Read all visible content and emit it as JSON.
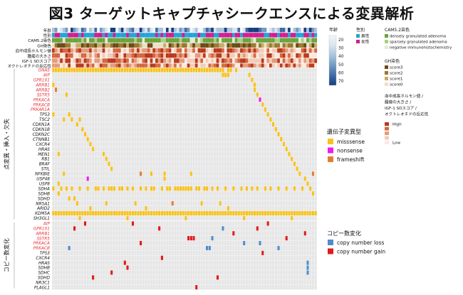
{
  "title": "図3 ターゲットキャプチャシークエンスによる変異解析",
  "chart_data": {
    "type": "heatmap",
    "n_samples": 100,
    "clinical": {
      "tracks": [
        {
          "label": "年齢",
          "kind": "age"
        },
        {
          "label": "性別",
          "kind": "sex"
        },
        {
          "label": "CAM5.2染色",
          "kind": "cam"
        },
        {
          "label": "GH染色",
          "kind": "gh"
        },
        {
          "label": "血中成長ホルモン値",
          "kind": "level"
        },
        {
          "label": "腫瘍の大きさ",
          "kind": "level"
        },
        {
          "label": "IGF-1 SDスコア",
          "kind": "level"
        },
        {
          "label": "オクトレオチドの反応性",
          "kind": "level"
        }
      ]
    },
    "mutations": {
      "section_label": "点変異・挿入・欠失",
      "genes": [
        {
          "name": "GNAS",
          "red": true,
          "samples": {
            "0-64": "m",
            "66-67": "m",
            "69": "m"
          }
        },
        {
          "name": "AIP",
          "red": true,
          "samples": {
            "64-66": "m",
            "74": "m"
          }
        },
        {
          "name": "GPR101",
          "red": true,
          "samples": {
            "75": "m"
          }
        },
        {
          "name": "ARRB1",
          "red": true,
          "samples": {
            "0": "m",
            "76": "m"
          }
        },
        {
          "name": "ARRB2",
          "red": true,
          "samples": {
            "1": "f",
            "76": "m"
          }
        },
        {
          "name": "SSTR5",
          "red": true,
          "samples": {
            "5": "m",
            "77": "m"
          }
        },
        {
          "name": "PRKACA",
          "red": true,
          "samples": {
            "78": "n"
          }
        },
        {
          "name": "PRKACB",
          "red": true,
          "samples": {
            "79": "m"
          }
        },
        {
          "name": "PRKAR1A",
          "red": true,
          "samples": {
            "80": "m"
          }
        },
        {
          "name": "TP53",
          "red": false,
          "samples": {
            "0": "m",
            "6": "m",
            "81": "m"
          }
        },
        {
          "name": "TSC2",
          "red": false,
          "samples": {
            "4": "m",
            "7": "m",
            "10": "m",
            "82": "m"
          }
        },
        {
          "name": "CDKN1A",
          "red": false,
          "samples": {
            "9": "m",
            "83": "m"
          }
        },
        {
          "name": "CDKN1B",
          "red": false,
          "samples": {
            "11": "m",
            "84": "m"
          }
        },
        {
          "name": "CDKN2C",
          "red": false,
          "samples": {
            "12": "m",
            "85": "m"
          }
        },
        {
          "name": "CTNNB1",
          "red": false,
          "samples": {
            "13": "m",
            "86": "m"
          }
        },
        {
          "name": "CXCR4",
          "red": false,
          "samples": {
            "14": "m",
            "87": "m"
          }
        },
        {
          "name": "HRAS",
          "red": false,
          "samples": {
            "15": "m",
            "88": "m"
          }
        },
        {
          "name": "MEN1",
          "red": false,
          "samples": {
            "2": "m",
            "19": "m",
            "89": "m"
          }
        },
        {
          "name": "RB1",
          "red": false,
          "samples": {
            "20": "m",
            "90": "m"
          }
        },
        {
          "name": "BRAF",
          "red": false,
          "samples": {
            "21": "m",
            "91": "m"
          }
        },
        {
          "name": "STIL",
          "red": false,
          "samples": {
            "22": "m",
            "92": "m"
          }
        },
        {
          "name": "NFKBIE",
          "red": false,
          "samples": {
            "4": "m",
            "33": "f",
            "37": "m",
            "42": "m",
            "52": "m",
            "93": "m",
            "98": "f"
          }
        },
        {
          "name": "USP48",
          "red": false,
          "samples": {
            "13": "n",
            "42": "m",
            "95": "m"
          }
        },
        {
          "name": "USP8",
          "red": false,
          "samples": {
            "2": "m",
            "96": "m"
          }
        },
        {
          "name": "SDHA",
          "red": false,
          "samples": {
            "0": "m",
            "3": "m",
            "5": "m",
            "7": "m",
            "10": "m",
            "13": "m",
            "16": "m",
            "17": "m",
            "19": "m",
            "21-23": "m",
            "25": "m",
            "26": "m",
            "28": "m",
            "30": "m",
            "33": "m",
            "35": "m",
            "37": "m",
            "38": "m",
            "41": "m",
            "43": "m",
            "44": "m",
            "46-52": "m",
            "54": "m",
            "55": "m",
            "57": "m",
            "58": "m",
            "60": "m",
            "62": "m",
            "65": "m",
            "68": "m",
            "71": "m",
            "73": "m",
            "75": "m",
            "77": "m",
            "80": "m",
            "82": "m",
            "85": "m",
            "88": "m",
            "91": "m",
            "94": "m",
            "97": "m"
          }
        },
        {
          "name": "SDHB",
          "red": false,
          "samples": {
            "2": "m",
            "98": "m"
          }
        },
        {
          "name": "SDHD",
          "red": false,
          "samples": {
            "6": "m",
            "8": "m"
          }
        },
        {
          "name": "NR5A1",
          "red": false,
          "samples": {
            "9": "m",
            "20": "m",
            "31": "m",
            "45": "f",
            "56": "m",
            "63": "m"
          }
        },
        {
          "name": "ARID2",
          "red": false,
          "samples": {
            "14": "m",
            "35": "m",
            "66": "m"
          }
        },
        {
          "name": "KDM5A",
          "red": false,
          "samples": {
            "0-99": "m",
            "3": "f",
            "9": "f",
            "12": "f",
            "18": "f",
            "22": "f",
            "27": "f",
            "31": "f",
            "36": "f",
            "40": "f",
            "44": "f",
            "49": "f",
            "53": "f",
            "57": "f",
            "61": "f",
            "66": "f",
            "70": "f",
            "73": "n",
            "76": "f",
            "80": "f",
            "84": "f",
            "88": "f",
            "92": "f",
            "96": "f"
          }
        },
        {
          "name": "SH3GL1",
          "red": false,
          "samples": {
            "10": "m",
            "28": "m",
            "50": "m",
            "72": "m",
            "90": "m"
          }
        }
      ]
    },
    "cnv": {
      "section_label": "コピー数変化",
      "genes": [
        {
          "name": "AIP",
          "red": true,
          "samples": {
            "12": "g",
            "30": "g",
            "81": "g"
          }
        },
        {
          "name": "GPR101",
          "red": true,
          "samples": {
            "8": "g",
            "40": "g",
            "64": "l",
            "77": "g"
          }
        },
        {
          "name": "ARRB1",
          "red": true,
          "samples": {
            "68": "g",
            "95": "g"
          }
        },
        {
          "name": "SSTR5",
          "red": true,
          "samples": {
            "51-53": "g",
            "60": "l",
            "88": "g"
          }
        },
        {
          "name": "PRKACA",
          "red": true,
          "samples": {
            "33": "g",
            "72": "l",
            "78": "l"
          }
        },
        {
          "name": "PRKACB",
          "red": true,
          "samples": {
            "6": "l",
            "58": "l",
            "59": "l",
            "85": "l"
          }
        },
        {
          "name": "TP53",
          "red": false,
          "samples": {
            "79": "g"
          }
        },
        {
          "name": "CXCR4",
          "red": false,
          "samples": {
            "41": "g"
          }
        },
        {
          "name": "HRAS",
          "red": false,
          "samples": {
            "27": "g",
            "96": "l"
          }
        },
        {
          "name": "SDHB",
          "red": false,
          "samples": {
            "28": "g",
            "96": "l"
          }
        },
        {
          "name": "SDHC",
          "red": false,
          "samples": {
            "22": "g",
            "96": "l"
          }
        },
        {
          "name": "SDHD",
          "red": false,
          "samples": {
            "15": "g",
            "62": "g"
          }
        },
        {
          "name": "NR3C1",
          "red": false,
          "samples": {}
        },
        {
          "name": "PLAGL1",
          "red": false,
          "samples": {
            "54": "g"
          }
        }
      ]
    },
    "legends": {
      "age": {
        "title": "年齢",
        "ticks": [
          "20",
          "30",
          "40",
          "50",
          "60",
          "70"
        ]
      },
      "sex": {
        "title": "性別",
        "items": [
          {
            "label": "男性",
            "color": "#22a2d8"
          },
          {
            "label": "女性",
            "color": "#d11c8f"
          }
        ]
      },
      "cam": {
        "title": "CAM5.2染色",
        "items": [
          {
            "label": "densely granulated adenoma",
            "color": "#6aa33c"
          },
          {
            "label": "sparsely granulated adenoma",
            "color": "#a9cf86"
          },
          {
            "label": "negative immunohistochemistry",
            "color": "#e2ecd6"
          }
        ]
      },
      "gh": {
        "title": "GH染色",
        "items": [
          {
            "label": "score3",
            "color": "#6b4a16"
          },
          {
            "label": "score2",
            "color": "#9c7630"
          },
          {
            "label": "score1",
            "color": "#c8aa6a"
          },
          {
            "label": "score0",
            "color": "#ece0c5"
          }
        ]
      },
      "level": {
        "title_lines": [
          "血中成長ホルモン値 /",
          "腫瘍の大きさ /",
          "IGF-1 SDスコア /",
          "オクトレオチドの反応性"
        ],
        "high": "High",
        "low": "Low",
        "colors": [
          "#b9391b",
          "#d4683f",
          "#e49b7c",
          "#f1ccb9",
          "#fbe9df"
        ]
      },
      "mut": {
        "title": "遺伝子変異型",
        "items": [
          {
            "key": "m",
            "label": "misssense",
            "color": "#f7c21b"
          },
          {
            "key": "n",
            "label": "nonsense",
            "color": "#ee1ce9"
          },
          {
            "key": "f",
            "label": "frameshift",
            "color": "#e27d33"
          }
        ]
      },
      "cnv": {
        "title": "コピー数変化",
        "items": [
          {
            "key": "l",
            "label": "copy number loss",
            "color": "#4f8ccc"
          },
          {
            "key": "g",
            "label": "copy number gain",
            "color": "#e01b1b"
          }
        ]
      }
    },
    "colors": {
      "empty": "#e6e6e6",
      "grid": "#ffffff",
      "gene_red": "#e8323c",
      "gene_black": "#111111"
    }
  }
}
